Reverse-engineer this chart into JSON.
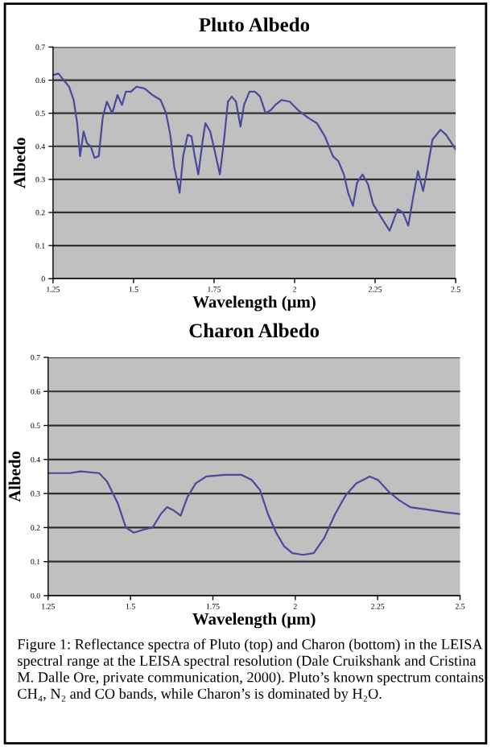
{
  "chart_data": [
    {
      "type": "line",
      "title": "Pluto Albedo",
      "xlabel": "Wavelength (μm)",
      "ylabel": "Albedo",
      "grid": "y",
      "legend": false,
      "marker": "none",
      "line_style": "solid",
      "xlim": [
        1.25,
        2.5
      ],
      "xticks": [
        1.25,
        1.5,
        1.75,
        2,
        2.25,
        2.5
      ],
      "ylim": [
        0,
        0.7
      ],
      "yticks": [
        0,
        0.1,
        0.2,
        0.3,
        0.4,
        0.5,
        0.6,
        0.7
      ],
      "series": [
        {
          "color": "#4a4a9c",
          "x": [
            1.25,
            1.267,
            1.283,
            1.3,
            1.314,
            1.325,
            1.334,
            1.345,
            1.355,
            1.367,
            1.379,
            1.392,
            1.404,
            1.417,
            1.434,
            1.45,
            1.464,
            1.476,
            1.492,
            1.509,
            1.534,
            1.559,
            1.584,
            1.601,
            1.614,
            1.626,
            1.643,
            1.654,
            1.668,
            1.68,
            1.69,
            1.701,
            1.715,
            1.723,
            1.738,
            1.751,
            1.768,
            1.781,
            1.793,
            1.805,
            1.818,
            1.832,
            1.843,
            1.86,
            1.877,
            1.893,
            1.91,
            1.927,
            1.94,
            1.96,
            1.985,
            2.01,
            2.044,
            2.069,
            2.094,
            2.119,
            2.136,
            2.153,
            2.166,
            2.181,
            2.194,
            2.211,
            2.228,
            2.244,
            2.269,
            2.295,
            2.32,
            2.336,
            2.353,
            2.366,
            2.383,
            2.399,
            2.411,
            2.428,
            2.453,
            2.47,
            2.487,
            2.5
          ],
          "values": [
            0.615,
            0.62,
            0.6,
            0.58,
            0.54,
            0.47,
            0.37,
            0.445,
            0.41,
            0.4,
            0.365,
            0.37,
            0.485,
            0.535,
            0.5,
            0.555,
            0.525,
            0.565,
            0.565,
            0.58,
            0.575,
            0.555,
            0.54,
            0.5,
            0.435,
            0.34,
            0.26,
            0.37,
            0.435,
            0.43,
            0.37,
            0.315,
            0.42,
            0.47,
            0.445,
            0.39,
            0.315,
            0.42,
            0.535,
            0.55,
            0.535,
            0.46,
            0.525,
            0.565,
            0.565,
            0.55,
            0.5,
            0.51,
            0.525,
            0.54,
            0.535,
            0.51,
            0.485,
            0.47,
            0.43,
            0.37,
            0.355,
            0.315,
            0.26,
            0.22,
            0.29,
            0.315,
            0.285,
            0.225,
            0.185,
            0.145,
            0.21,
            0.2,
            0.16,
            0.235,
            0.325,
            0.265,
            0.325,
            0.42,
            0.45,
            0.435,
            0.41,
            0.39
          ]
        }
      ]
    },
    {
      "type": "line",
      "title": "Charon Albedo",
      "xlabel": "Wavelength (μm)",
      "ylabel": "Albedo",
      "grid": "y",
      "legend": false,
      "marker": "none",
      "line_style": "solid",
      "xlim": [
        1.25,
        2.5
      ],
      "xticks": [
        1.25,
        1.5,
        1.75,
        2,
        2.25,
        2.5
      ],
      "ylim": [
        0,
        0.7
      ],
      "yticks": [
        {
          "value": 0,
          "label": "0.0"
        },
        0.1,
        0.2,
        0.3,
        0.4,
        0.5,
        0.6,
        0.7
      ],
      "series": [
        {
          "color": "#4a4a9c",
          "x": [
            1.25,
            1.315,
            1.348,
            1.405,
            1.429,
            1.462,
            1.486,
            1.51,
            1.543,
            1.567,
            1.592,
            1.611,
            1.632,
            1.652,
            1.673,
            1.698,
            1.73,
            1.787,
            1.836,
            1.868,
            1.893,
            1.917,
            1.942,
            1.966,
            1.991,
            2.023,
            2.056,
            2.088,
            2.121,
            2.153,
            2.185,
            2.226,
            2.251,
            2.284,
            2.316,
            2.349,
            2.406,
            2.454,
            2.5
          ],
          "values": [
            0.36,
            0.36,
            0.365,
            0.36,
            0.335,
            0.27,
            0.2,
            0.185,
            0.195,
            0.2,
            0.24,
            0.26,
            0.25,
            0.235,
            0.29,
            0.33,
            0.35,
            0.355,
            0.355,
            0.34,
            0.31,
            0.24,
            0.185,
            0.145,
            0.125,
            0.12,
            0.125,
            0.17,
            0.24,
            0.295,
            0.33,
            0.35,
            0.34,
            0.305,
            0.28,
            0.26,
            0.252,
            0.245,
            0.24
          ]
        }
      ],
      "annotations": [
        "Figure 1: Reflectance spectra of Pluto (top) and Charon (bottom) in the LEISA spectral range at the LEISA spectral resolution (Dale Cruikshank and Cristina M. Dalle Ore, private communication, 2000). Pluto’s known spectrum contains CH₄, N₂ and CO bands, while Charon’s is dominated by H₂O."
      ]
    }
  ]
}
